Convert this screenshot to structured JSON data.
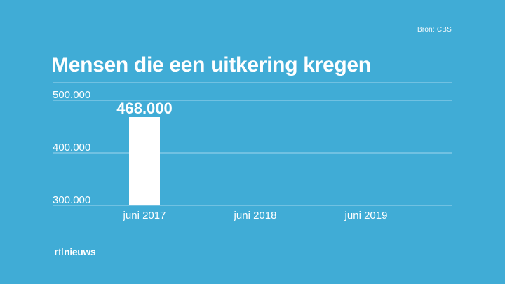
{
  "source": "Bron: CBS",
  "title": "Mensen die een uitkering kregen",
  "logo": {
    "prefix": "rtl",
    "suffix": "nieuws"
  },
  "colors": {
    "background": "#40acd6",
    "bar": "#ffffff",
    "text": "#ffffff",
    "grid": "#9fd6ee"
  },
  "chart_data": {
    "type": "bar",
    "title": "Mensen die een uitkering kregen",
    "categories": [
      "juni 2017",
      "juni 2018",
      "juni 2019"
    ],
    "values": [
      468000,
      null,
      null
    ],
    "data_labels": [
      "468.000",
      "",
      ""
    ],
    "ylim": [
      300000,
      500000
    ],
    "yticks": [
      300000,
      400000,
      500000
    ],
    "ytick_labels": [
      "300.000",
      "400.000",
      "500.000"
    ],
    "xlabel": "",
    "ylabel": "",
    "grid": true
  }
}
